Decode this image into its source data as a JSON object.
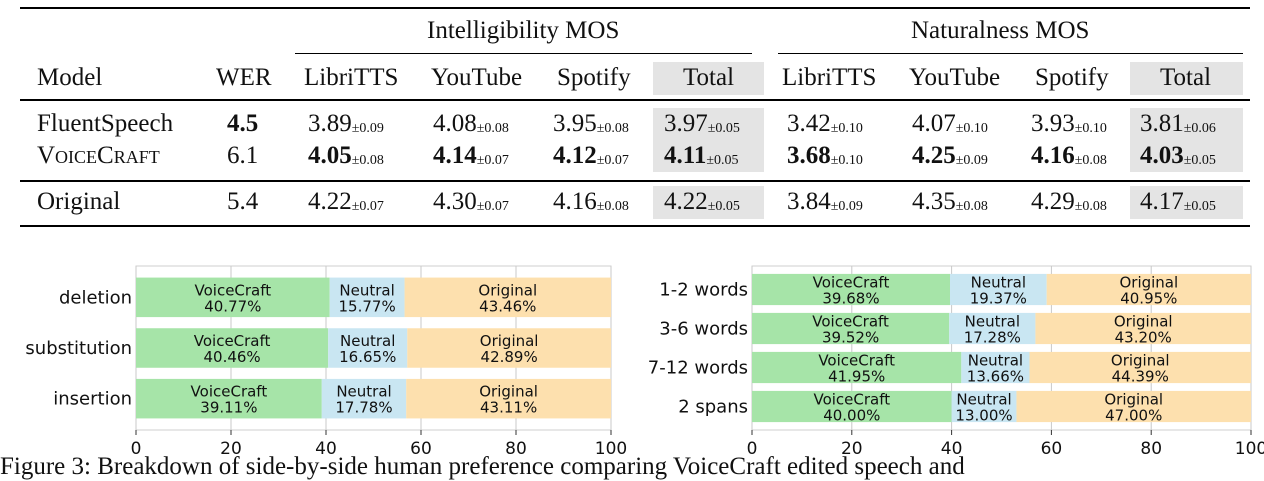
{
  "table": {
    "group_headers": [
      "Intelligibility MOS",
      "Naturalness MOS"
    ],
    "columns": [
      "Model",
      "WER",
      "LibriTTS",
      "YouTube",
      "Spotify",
      "Total",
      "LibriTTS",
      "YouTube",
      "Spotify",
      "Total"
    ],
    "rows": [
      {
        "model": "FluentSpeech",
        "wer": "4.5",
        "cells": [
          {
            "v": "3.89",
            "pm": "±0.09"
          },
          {
            "v": "4.08",
            "pm": "±0.08"
          },
          {
            "v": "3.95",
            "pm": "±0.08"
          },
          {
            "v": "3.97",
            "pm": "±0.05"
          },
          {
            "v": "3.42",
            "pm": "±0.10"
          },
          {
            "v": "4.07",
            "pm": "±0.10"
          },
          {
            "v": "3.93",
            "pm": "±0.10"
          },
          {
            "v": "3.81",
            "pm": "±0.06"
          }
        ]
      },
      {
        "model": "VoiceCraft",
        "wer": "6.1",
        "cells": [
          {
            "v": "4.05",
            "pm": "±0.08"
          },
          {
            "v": "4.14",
            "pm": "±0.07"
          },
          {
            "v": "4.12",
            "pm": "±0.07"
          },
          {
            "v": "4.11",
            "pm": "±0.05"
          },
          {
            "v": "3.68",
            "pm": "±0.10"
          },
          {
            "v": "4.25",
            "pm": "±0.09"
          },
          {
            "v": "4.16",
            "pm": "±0.08"
          },
          {
            "v": "4.03",
            "pm": "±0.05"
          }
        ]
      },
      {
        "model": "Original",
        "wer": "5.4",
        "cells": [
          {
            "v": "4.22",
            "pm": "±0.07"
          },
          {
            "v": "4.30",
            "pm": "±0.07"
          },
          {
            "v": "4.16",
            "pm": "±0.08"
          },
          {
            "v": "4.22",
            "pm": "±0.05"
          },
          {
            "v": "3.84",
            "pm": "±0.09"
          },
          {
            "v": "4.35",
            "pm": "±0.08"
          },
          {
            "v": "4.29",
            "pm": "±0.08"
          },
          {
            "v": "4.17",
            "pm": "±0.05"
          }
        ]
      }
    ]
  },
  "chart_data": [
    {
      "type": "bar",
      "orientation": "horizontal-stacked",
      "categories": [
        "deletion",
        "substitution",
        "insertion"
      ],
      "series": [
        {
          "name": "VoiceCraft",
          "values": [
            40.77,
            40.46,
            39.11
          ]
        },
        {
          "name": "Neutral",
          "values": [
            15.77,
            16.65,
            17.78
          ]
        },
        {
          "name": "Original",
          "values": [
            43.46,
            42.89,
            43.11
          ]
        }
      ],
      "xlim": [
        0,
        100
      ],
      "xticks": [
        "0",
        "20",
        "40",
        "60",
        "80",
        "100"
      ],
      "grid": true
    },
    {
      "type": "bar",
      "orientation": "horizontal-stacked",
      "categories": [
        "1-2 words",
        "3-6 words",
        "7-12 words",
        "2 spans"
      ],
      "series": [
        {
          "name": "VoiceCraft",
          "values": [
            39.68,
            39.52,
            41.95,
            40.0
          ]
        },
        {
          "name": "Neutral",
          "values": [
            19.37,
            17.28,
            13.66,
            13.0
          ]
        },
        {
          "name": "Original",
          "values": [
            40.95,
            43.2,
            44.39,
            47.0
          ]
        }
      ],
      "xlim": [
        0,
        100
      ],
      "xticks": [
        "0",
        "20",
        "40",
        "60",
        "80",
        "100"
      ],
      "grid": true
    }
  ],
  "colors": {
    "VoiceCraft": "#a6e4a8",
    "Neutral": "#c9e6f2",
    "Original": "#fde0ae"
  },
  "caption": "Figure 3: Breakdown of side-by-side human preference comparing VoiceCraft edited speech and"
}
